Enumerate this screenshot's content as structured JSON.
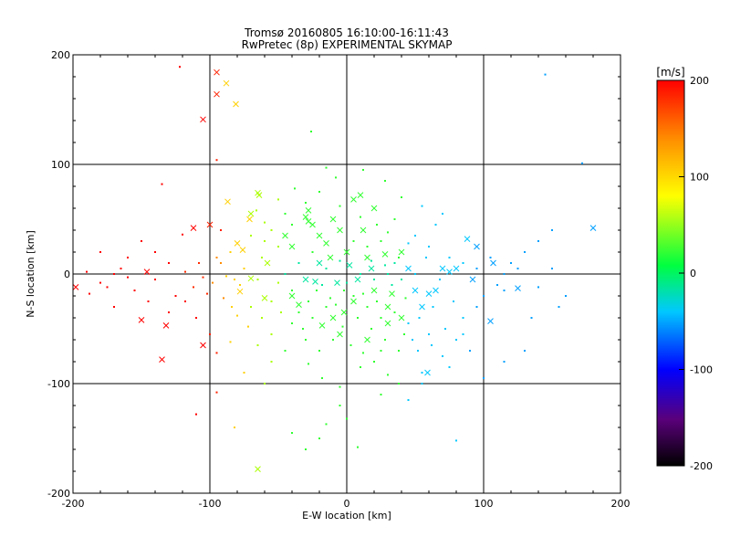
{
  "chart_data": {
    "type": "scatter",
    "title": "Tromsø 20160805 16:10:00-16:11:43",
    "subtitle": "RwPretec (8p) EXPERIMENTAL SKYMAP",
    "xlabel": "E-W location [km]",
    "ylabel": "N-S location [km]",
    "xlim": [
      -200,
      200
    ],
    "ylim": [
      -200,
      200
    ],
    "xticks": [
      "-200",
      "-100",
      "0",
      "100",
      "200"
    ],
    "yticks": [
      "-200",
      "-100",
      "0",
      "100",
      "200"
    ],
    "grid": true,
    "colorbar": {
      "label": "[m/s]",
      "range": [
        -200,
        200
      ],
      "ticks": [
        "200",
        "100",
        "0",
        "-100",
        "-200"
      ],
      "colormap": [
        "#000000",
        "#5a007a",
        "#0000ff",
        "#00c8ff",
        "#00ff40",
        "#ffff00",
        "#ff8c00",
        "#ff0000"
      ]
    },
    "series": [
      {
        "marker": "x",
        "points": [
          [
            -95,
            184
          ],
          [
            -88,
            174
          ],
          [
            -95,
            164
          ],
          [
            -81,
            155
          ],
          [
            -105,
            141
          ],
          [
            -64,
            72
          ],
          [
            -65,
            74
          ],
          [
            -87,
            66
          ],
          [
            -70,
            55
          ],
          [
            -71,
            50
          ],
          [
            -112,
            42
          ],
          [
            -28,
            58
          ],
          [
            -30,
            52
          ],
          [
            -25,
            45
          ],
          [
            -20,
            35
          ],
          [
            -28,
            48
          ],
          [
            -15,
            28
          ],
          [
            -100,
            45
          ],
          [
            -80,
            28
          ],
          [
            -76,
            22
          ],
          [
            -58,
            10
          ],
          [
            -70,
            -4
          ],
          [
            -78,
            -16
          ],
          [
            -150,
            -42
          ],
          [
            -135,
            -78
          ],
          [
            -146,
            2
          ],
          [
            -198,
            -12
          ],
          [
            -132,
            -47
          ],
          [
            -105,
            -65
          ],
          [
            -65,
            -178
          ],
          [
            10,
            72
          ],
          [
            20,
            60
          ],
          [
            5,
            68
          ],
          [
            -10,
            50
          ],
          [
            -5,
            40
          ],
          [
            12,
            40
          ],
          [
            -40,
            25
          ],
          [
            -20,
            10
          ],
          [
            0,
            20
          ],
          [
            15,
            15
          ],
          [
            28,
            18
          ],
          [
            40,
            20
          ],
          [
            -30,
            -5
          ],
          [
            -40,
            -20
          ],
          [
            5,
            -25
          ],
          [
            20,
            -15
          ],
          [
            30,
            -30
          ],
          [
            50,
            -15
          ],
          [
            55,
            -30
          ],
          [
            65,
            -15
          ],
          [
            60,
            -18
          ],
          [
            88,
            32
          ],
          [
            95,
            25
          ],
          [
            80,
            5
          ],
          [
            70,
            5
          ],
          [
            92,
            -5
          ],
          [
            107,
            10
          ],
          [
            105,
            -43
          ],
          [
            125,
            -13
          ],
          [
            180,
            42
          ],
          [
            59,
            -90
          ],
          [
            -23,
            -7
          ],
          [
            -35,
            -28
          ],
          [
            -10,
            -40
          ],
          [
            -18,
            -47
          ],
          [
            -5,
            -55
          ],
          [
            30,
            -45
          ],
          [
            40,
            -40
          ],
          [
            15,
            -60
          ],
          [
            -7,
            -8
          ],
          [
            2,
            8
          ],
          [
            -12,
            15
          ],
          [
            8,
            -5
          ],
          [
            -45,
            35
          ],
          [
            -60,
            -22
          ],
          [
            75,
            2
          ],
          [
            45,
            5
          ],
          [
            33,
            -18
          ],
          [
            -2,
            -35
          ],
          [
            18,
            5
          ]
        ]
      },
      {
        "marker": "dot",
        "points": [
          [
            -122,
            189
          ],
          [
            145,
            182
          ],
          [
            -26,
            130
          ],
          [
            172,
            101
          ],
          [
            -135,
            82
          ],
          [
            -95,
            104
          ],
          [
            -66,
            58
          ],
          [
            -60,
            47
          ],
          [
            -92,
            40
          ],
          [
            -120,
            36
          ],
          [
            -190,
            2
          ],
          [
            -170,
            0
          ],
          [
            -160,
            -3
          ],
          [
            -180,
            -8
          ],
          [
            -175,
            -12
          ],
          [
            -155,
            -15
          ],
          [
            -165,
            5
          ],
          [
            -140,
            -5
          ],
          [
            -130,
            10
          ],
          [
            -125,
            -20
          ],
          [
            -140,
            20
          ],
          [
            -130,
            -35
          ],
          [
            -118,
            -25
          ],
          [
            -110,
            -40
          ],
          [
            -100,
            -55
          ],
          [
            -95,
            -72
          ],
          [
            -108,
            10
          ],
          [
            -95,
            15
          ],
          [
            -85,
            20
          ],
          [
            -78,
            -10
          ],
          [
            -70,
            -30
          ],
          [
            -62,
            -40
          ],
          [
            -55,
            -55
          ],
          [
            -50,
            -8
          ],
          [
            -45,
            0
          ],
          [
            -40,
            -15
          ],
          [
            -35,
            -35
          ],
          [
            -30,
            -60
          ],
          [
            -28,
            -82
          ],
          [
            -20,
            -70
          ],
          [
            -18,
            -95
          ],
          [
            -5,
            -103
          ],
          [
            10,
            -85
          ],
          [
            20,
            -80
          ],
          [
            30,
            -92
          ],
          [
            38,
            -100
          ],
          [
            55,
            -90
          ],
          [
            70,
            -75
          ],
          [
            80,
            -60
          ],
          [
            60,
            -55
          ],
          [
            85,
            -40
          ],
          [
            95,
            -30
          ],
          [
            100,
            -20
          ],
          [
            110,
            -10
          ],
          [
            115,
            0
          ],
          [
            120,
            10
          ],
          [
            130,
            20
          ],
          [
            135,
            -40
          ],
          [
            155,
            -30
          ],
          [
            130,
            -70
          ],
          [
            115,
            -80
          ],
          [
            100,
            -95
          ],
          [
            80,
            -152
          ],
          [
            -40,
            -145
          ],
          [
            -20,
            -150
          ],
          [
            -30,
            -160
          ],
          [
            8,
            -158
          ],
          [
            -5,
            -120
          ],
          [
            0,
            -132
          ],
          [
            -15,
            -137
          ],
          [
            25,
            -110
          ],
          [
            45,
            -115
          ],
          [
            -60,
            -100
          ],
          [
            -75,
            -90
          ],
          [
            -95,
            -108
          ],
          [
            -82,
            -140
          ],
          [
            -110,
            -128
          ],
          [
            140,
            -12
          ],
          [
            150,
            5
          ],
          [
            160,
            -20
          ],
          [
            65,
            45
          ],
          [
            70,
            55
          ],
          [
            55,
            62
          ],
          [
            40,
            70
          ],
          [
            28,
            85
          ],
          [
            12,
            95
          ],
          [
            -8,
            88
          ],
          [
            -15,
            97
          ],
          [
            -38,
            78
          ],
          [
            -50,
            68
          ],
          [
            -45,
            55
          ],
          [
            -55,
            40
          ],
          [
            -50,
            25
          ],
          [
            -62,
            15
          ],
          [
            35,
            50
          ],
          [
            50,
            35
          ],
          [
            60,
            25
          ],
          [
            75,
            15
          ],
          [
            85,
            10
          ],
          [
            95,
            5
          ],
          [
            105,
            15
          ],
          [
            115,
            -15
          ],
          [
            125,
            5
          ],
          [
            -22,
            -15
          ],
          [
            -12,
            -22
          ],
          [
            -2,
            -15
          ],
          [
            12,
            -18
          ],
          [
            22,
            -25
          ],
          [
            35,
            -35
          ],
          [
            45,
            -45
          ],
          [
            48,
            -60
          ],
          [
            38,
            -70
          ],
          [
            28,
            -60
          ],
          [
            18,
            -50
          ],
          [
            8,
            -40
          ],
          [
            -3,
            -48
          ],
          [
            -10,
            -60
          ],
          [
            -15,
            -30
          ],
          [
            3,
            -65
          ],
          [
            12,
            -72
          ],
          [
            25,
            -70
          ],
          [
            42,
            -55
          ],
          [
            52,
            -70
          ],
          [
            62,
            -65
          ],
          [
            72,
            -50
          ],
          [
            5,
            30
          ],
          [
            15,
            25
          ],
          [
            25,
            30
          ],
          [
            35,
            10
          ],
          [
            -25,
            20
          ],
          [
            -35,
            10
          ],
          [
            -15,
            5
          ],
          [
            0,
            -8
          ],
          [
            10,
            0
          ],
          [
            20,
            -5
          ],
          [
            30,
            0
          ],
          [
            40,
            -5
          ],
          [
            50,
            0
          ],
          [
            -5,
            12
          ],
          [
            -25,
            -40
          ],
          [
            -32,
            -50
          ],
          [
            -40,
            -45
          ],
          [
            -48,
            -35
          ],
          [
            -55,
            -25
          ],
          [
            -65,
            -5
          ],
          [
            -75,
            5
          ],
          [
            -88,
            -2
          ],
          [
            -98,
            -8
          ],
          [
            -105,
            -3
          ],
          [
            -112,
            -12
          ],
          [
            -118,
            2
          ],
          [
            -102,
            -18
          ],
          [
            -90,
            -22
          ],
          [
            -84,
            -30
          ],
          [
            -92,
            10
          ],
          [
            -82,
            -5
          ],
          [
            -60,
            30
          ],
          [
            -70,
            35
          ],
          [
            -40,
            45
          ],
          [
            -30,
            65
          ],
          [
            -20,
            75
          ],
          [
            -5,
            62
          ],
          [
            10,
            52
          ],
          [
            22,
            45
          ],
          [
            30,
            38
          ],
          [
            45,
            28
          ],
          [
            58,
            15
          ],
          [
            68,
            -5
          ],
          [
            78,
            -25
          ],
          [
            85,
            -55
          ],
          [
            90,
            -70
          ],
          [
            75,
            -85
          ],
          [
            55,
            -100
          ],
          [
            -45,
            -70
          ],
          [
            -55,
            -80
          ],
          [
            -65,
            -65
          ],
          [
            -72,
            -48
          ],
          [
            -80,
            -38
          ],
          [
            -85,
            -62
          ],
          [
            140,
            30
          ],
          [
            150,
            40
          ],
          [
            -150,
            30
          ],
          [
            -145,
            -25
          ],
          [
            -170,
            -30
          ],
          [
            -180,
            20
          ],
          [
            -188,
            -18
          ],
          [
            -160,
            15
          ],
          [
            15,
            -30
          ],
          [
            25,
            -40
          ],
          [
            5,
            -20
          ],
          [
            -8,
            -28
          ],
          [
            18,
            12
          ],
          [
            28,
            8
          ],
          [
            38,
            15
          ],
          [
            -18,
            -10
          ],
          [
            -28,
            -25
          ],
          [
            33,
            -10
          ],
          [
            43,
            -22
          ],
          [
            53,
            -40
          ],
          [
            63,
            -30
          ]
        ]
      }
    ]
  }
}
